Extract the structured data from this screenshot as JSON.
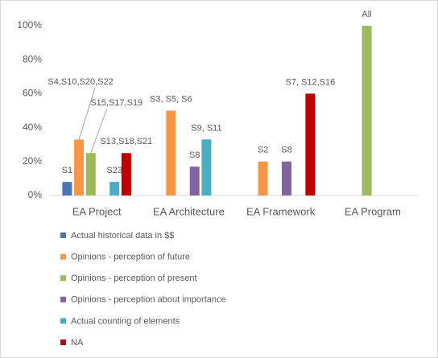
{
  "chart_data": {
    "type": "bar",
    "categories": [
      "EA Project",
      "EA Architecture",
      "EA Framework",
      "EA Program"
    ],
    "series": [
      {
        "name": "Actual historical data in $$",
        "color": "#4a76b8",
        "values": [
          8,
          null,
          null,
          null
        ],
        "point_labels": [
          "S1",
          null,
          null,
          null
        ]
      },
      {
        "name": "Opinions - perception of future",
        "color": "#f79646",
        "values": [
          33,
          50,
          20,
          null
        ],
        "point_labels": [
          "S4,S10,S20,S22",
          "S3, S5, S6",
          "S2",
          null
        ]
      },
      {
        "name": "Opinions - perception of present",
        "color": "#9bbb59",
        "values": [
          25,
          null,
          null,
          100
        ],
        "point_labels": [
          "S15,S17,S19",
          null,
          null,
          "All"
        ]
      },
      {
        "name": "Opinions - perception about importance",
        "color": "#8064a2",
        "values": [
          null,
          17,
          20,
          null
        ],
        "point_labels": [
          null,
          "S8",
          "S8",
          null
        ]
      },
      {
        "name": "Actual counting of elements",
        "color": "#4bacc6",
        "values": [
          8,
          33,
          null,
          null
        ],
        "point_labels": [
          "S23",
          "S9, S11",
          null,
          null
        ]
      },
      {
        "name": "NA",
        "color": "#c00000",
        "values": [
          25,
          null,
          60,
          null
        ],
        "point_labels": [
          "S13,S18,S21",
          null,
          "S7, S12,S16",
          null
        ]
      }
    ],
    "ylim": [
      0,
      100
    ],
    "yticks": [
      {
        "value": 0,
        "label": "0%"
      },
      {
        "value": 20,
        "label": "20%"
      },
      {
        "value": 40,
        "label": "40%"
      },
      {
        "value": 60,
        "label": "60%"
      },
      {
        "value": 80,
        "label": "80%"
      },
      {
        "value": 100,
        "label": "100%"
      }
    ],
    "legend": "bottom-left"
  }
}
